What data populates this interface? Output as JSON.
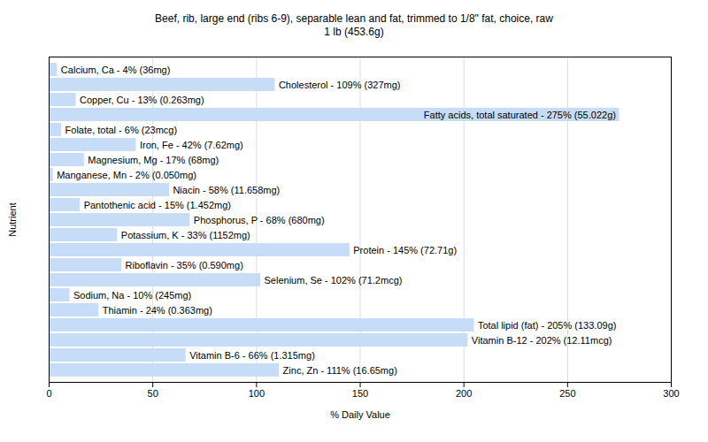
{
  "chart_data": {
    "type": "bar",
    "orientation": "horizontal",
    "title": "Beef, rib, large end (ribs 6-9), separable lean and fat, trimmed to 1/8\" fat, choice, raw",
    "subtitle": "1 lb (453.6g)",
    "x_label": "% Daily Value",
    "y_label": "Nutrient",
    "categories": [
      "Calcium, Ca - 4% (36mg)",
      "Cholesterol - 109% (327mg)",
      "Copper, Cu - 13% (0.263mg)",
      "Fatty acids, total saturated - 275% (55.022g)",
      "Folate, total - 6% (23mcg)",
      "Iron, Fe - 42% (7.62mg)",
      "Magnesium, Mg - 17% (68mg)",
      "Manganese, Mn - 2% (0.050mg)",
      "Niacin - 58% (11.658mg)",
      "Pantothenic acid - 15% (1.452mg)",
      "Phosphorus, P - 68% (680mg)",
      "Potassium, K - 33% (1152mg)",
      "Protein - 145% (72.71g)",
      "Riboflavin - 35% (0.590mg)",
      "Selenium, Se - 102% (71.2mcg)",
      "Sodium, Na - 10% (245mg)",
      "Thiamin - 24% (0.363mg)",
      "Total lipid (fat) - 205% (133.09g)",
      "Vitamin B-12 - 202% (12.11mcg)",
      "Vitamin B-6 - 66% (1.315mg)",
      "Zinc, Zn - 111% (16.65mg)"
    ],
    "values": [
      4,
      109,
      13,
      275,
      6,
      42,
      17,
      2,
      58,
      15,
      68,
      33,
      145,
      35,
      102,
      10,
      24,
      205,
      202,
      66,
      111
    ],
    "color": "#c6dcf7",
    "xlim": [
      0,
      300
    ],
    "xticks": [
      0,
      50,
      100,
      150,
      200,
      250,
      300
    ],
    "grid": true,
    "tick_labels": "x"
  }
}
